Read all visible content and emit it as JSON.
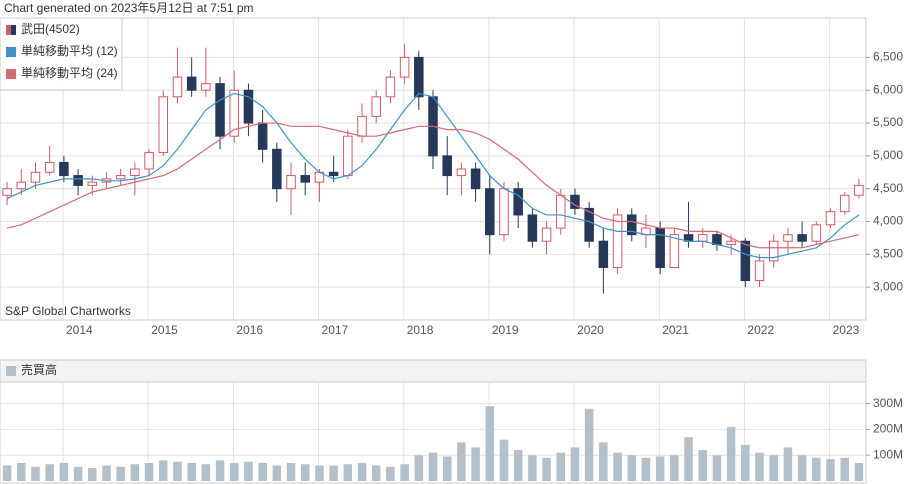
{
  "chart_data": [
    {
      "type": "candlestick",
      "title": "Chart generated on 2023年5月12日 at 7:51 pm",
      "annotation": "S&P Global Chartworks",
      "categories": [
        null,
        null,
        null,
        null,
        null,
        "2014",
        null,
        null,
        null,
        null,
        null,
        "2015",
        null,
        null,
        null,
        null,
        null,
        "2016",
        null,
        null,
        null,
        null,
        null,
        "2017",
        null,
        null,
        null,
        null,
        null,
        "2018",
        null,
        null,
        null,
        null,
        null,
        "2019",
        null,
        null,
        null,
        null,
        null,
        "2020",
        null,
        null,
        null,
        null,
        null,
        "2021",
        null,
        null,
        null,
        null,
        null,
        "2022",
        null,
        null,
        null,
        null,
        null,
        "2023",
        null
      ],
      "ylim": [
        2500,
        7100
      ],
      "yticks": [
        {
          "value": 3000,
          "label": "3,000"
        },
        {
          "value": 3500,
          "label": "3,500"
        },
        {
          "value": 4000,
          "label": "4,000"
        },
        {
          "value": 4500,
          "label": "4,500"
        },
        {
          "value": 5000,
          "label": "5,000"
        },
        {
          "value": 5500,
          "label": "5,500"
        },
        {
          "value": 6000,
          "label": "6,000"
        },
        {
          "value": 6500,
          "label": "6,500"
        }
      ],
      "grid": true,
      "series": [
        {
          "name": "武田(4502)",
          "up_color": "#d25a66",
          "down_color": "#26395a",
          "open": [
            4400,
            4500,
            4600,
            4750,
            4900,
            4700,
            4550,
            4600,
            4650,
            4700,
            4800,
            5050,
            5900,
            6200,
            6000,
            6100,
            5300,
            6000,
            5500,
            5100,
            4500,
            4700,
            4600,
            4750,
            4700,
            5300,
            5600,
            5900,
            6200,
            6500,
            5900,
            5000,
            4700,
            4800,
            4500,
            3800,
            4500,
            4100,
            3700,
            3900,
            4400,
            4200,
            3700,
            3300,
            4100,
            3800,
            3900,
            3300,
            3800,
            3700,
            3800,
            3650,
            3700,
            3100,
            3400,
            3700,
            3800,
            3700,
            3950,
            4150,
            4400
          ],
          "high": [
            4600,
            4800,
            4900,
            5150,
            5000,
            4800,
            4700,
            4750,
            4800,
            4900,
            5100,
            6000,
            6650,
            6500,
            6650,
            6200,
            6300,
            6100,
            5700,
            5200,
            4900,
            4900,
            4800,
            5000,
            5400,
            5800,
            6000,
            6300,
            6700,
            6600,
            6000,
            5300,
            4900,
            4900,
            4700,
            4600,
            4600,
            4200,
            4000,
            4500,
            4500,
            4300,
            3900,
            4200,
            4200,
            4100,
            4000,
            3900,
            4300,
            3900,
            3850,
            3800,
            3750,
            3500,
            3800,
            3900,
            4000,
            4000,
            4200,
            4450,
            4650
          ],
          "low": [
            4250,
            4400,
            4500,
            4700,
            4600,
            4400,
            4400,
            4500,
            4550,
            4400,
            4700,
            5000,
            5800,
            5900,
            5900,
            5100,
            5200,
            5300,
            4900,
            4300,
            4100,
            4400,
            4300,
            4600,
            4650,
            5200,
            5500,
            5800,
            6100,
            5700,
            4800,
            4400,
            4400,
            4300,
            3500,
            3700,
            3900,
            3600,
            3500,
            3800,
            4100,
            3600,
            2900,
            3200,
            3700,
            3600,
            3200,
            3300,
            3600,
            3600,
            3550,
            3500,
            3000,
            3000,
            3300,
            3500,
            3600,
            3650,
            3900,
            4100,
            4350
          ],
          "close": [
            4500,
            4600,
            4750,
            4900,
            4700,
            4550,
            4600,
            4650,
            4700,
            4800,
            5050,
            5900,
            6200,
            6000,
            6100,
            5300,
            6000,
            5500,
            5100,
            4500,
            4700,
            4600,
            4750,
            4700,
            5300,
            5600,
            5900,
            6200,
            6500,
            5900,
            5000,
            4700,
            4800,
            4500,
            3800,
            4500,
            4100,
            3700,
            3900,
            4400,
            4200,
            3700,
            3300,
            4100,
            3800,
            3900,
            3300,
            3800,
            3700,
            3800,
            3650,
            3700,
            3100,
            3400,
            3700,
            3800,
            3700,
            3950,
            4150,
            4400,
            4550
          ]
        },
        {
          "name": "単純移動平均 (12)",
          "color": "#3d93c9",
          "values": [
            4350,
            4450,
            4550,
            4600,
            4650,
            4650,
            4650,
            4620,
            4620,
            4650,
            4700,
            4850,
            5100,
            5400,
            5700,
            5850,
            5950,
            5900,
            5750,
            5500,
            5200,
            4950,
            4750,
            4650,
            4700,
            4850,
            5100,
            5400,
            5700,
            5950,
            5900,
            5600,
            5300,
            5000,
            4700,
            4500,
            4400,
            4200,
            4100,
            4100,
            4050,
            4000,
            3900,
            3850,
            3850,
            3800,
            3800,
            3750,
            3700,
            3700,
            3650,
            3600,
            3500,
            3450,
            3450,
            3500,
            3550,
            3600,
            3750,
            3950,
            4100
          ]
        },
        {
          "name": "単純移動平均 (24)",
          "color": "#d46a78",
          "values": [
            3900,
            3950,
            4050,
            4150,
            4250,
            4350,
            4450,
            4500,
            4550,
            4600,
            4650,
            4700,
            4800,
            4950,
            5100,
            5250,
            5400,
            5450,
            5500,
            5500,
            5450,
            5450,
            5450,
            5400,
            5350,
            5300,
            5300,
            5350,
            5400,
            5450,
            5450,
            5400,
            5400,
            5350,
            5250,
            5100,
            4950,
            4750,
            4550,
            4400,
            4250,
            4150,
            4050,
            4000,
            4000,
            3950,
            3900,
            3900,
            3850,
            3850,
            3850,
            3750,
            3650,
            3600,
            3600,
            3600,
            3600,
            3650,
            3700,
            3750,
            3800
          ]
        }
      ]
    },
    {
      "type": "bar",
      "ylim": [
        0,
        380
      ],
      "yticks": [
        {
          "value": 100,
          "label": "100M"
        },
        {
          "value": 200,
          "label": "200M"
        },
        {
          "value": 300,
          "label": "300M"
        }
      ],
      "grid": true,
      "series": [
        {
          "name": "売買高",
          "color": "#b3bfc9",
          "values": [
            60,
            70,
            55,
            65,
            70,
            55,
            50,
            60,
            55,
            65,
            70,
            80,
            75,
            70,
            65,
            80,
            70,
            75,
            70,
            60,
            70,
            65,
            60,
            60,
            65,
            70,
            60,
            55,
            65,
            100,
            110,
            95,
            150,
            130,
            290,
            160,
            120,
            100,
            90,
            110,
            130,
            280,
            150,
            110,
            100,
            90,
            95,
            100,
            170,
            120,
            100,
            210,
            140,
            110,
            100,
            130,
            100,
            90,
            85,
            90,
            70
          ]
        }
      ]
    }
  ]
}
